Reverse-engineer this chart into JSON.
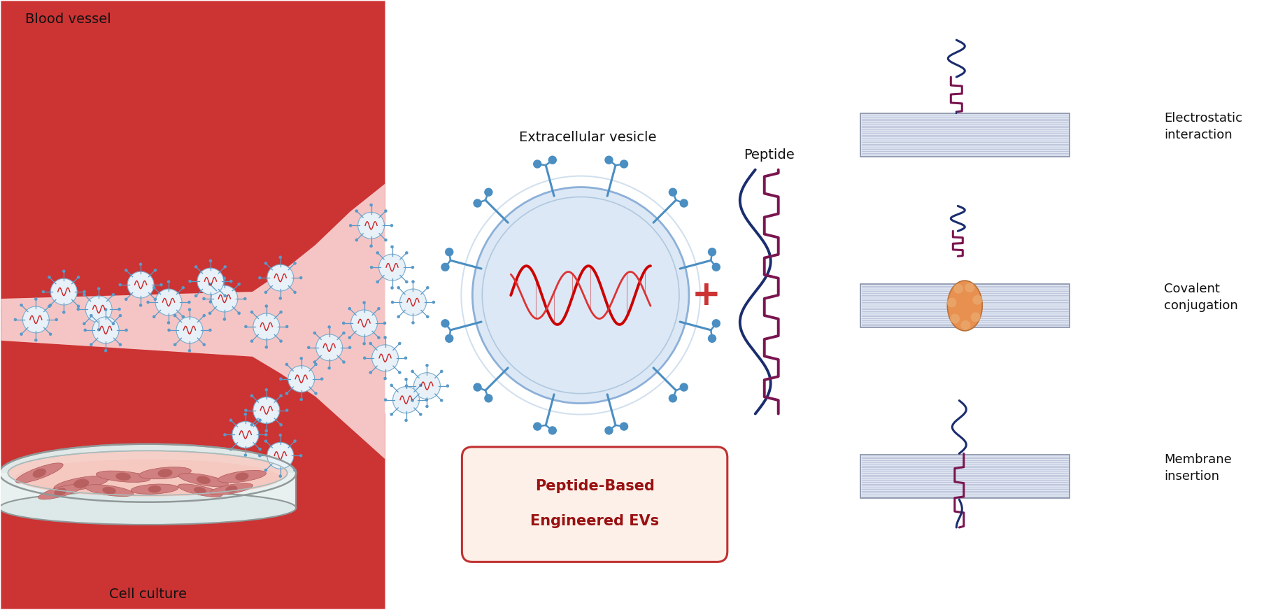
{
  "bg_color": "#ffffff",
  "blood_vessel_outer": "#cc3333",
  "blood_vessel_wall": "#d44444",
  "blood_vessel_inner": "#f5c5c5",
  "ev_body_color": "#dce8f5",
  "ev_border_color": "#8cb0d8",
  "ev_border2_color": "#b0c8e0",
  "ev_spike_color": "#4a8ec2",
  "dna_color": "#cc1111",
  "peptide_dark": "#1a2d6e",
  "peptide_zigzag": "#7a1550",
  "membrane_color": "#dde4f0",
  "membrane_border": "#8890a8",
  "membrane_lines": "#b8c0d8",
  "protein_color": "#e89050",
  "cell_body_color": "#e8a8a0",
  "cell_outline_color": "#c06868",
  "cell_nucleus_color": "#c47070",
  "dish_rim_color": "#c8d8d8",
  "dish_inner_color": "#f5d0c8",
  "dish_border_color": "#909898",
  "mini_ev_body": "#e8f0f8",
  "mini_ev_border": "#7aaccc",
  "mini_ev_spike": "#5a9ac8",
  "mini_ev_dna": "#cc2222",
  "label_blood": "Blood vessel",
  "label_ev": "Extracellular vesicle",
  "label_peptide": "Peptide",
  "label_cell": "Cell culture",
  "label_box1": "Peptide-Based",
  "label_box2": "Engineered EVs",
  "label_es": "Electrostatic\ninteraction",
  "label_cc": "Covalent\nconjugation",
  "label_mi": "Membrane\ninsertion",
  "plus_color": "#cc3333",
  "text_color": "#111111",
  "box_bg": "#fdf0e8",
  "box_border": "#c03030",
  "box_text_color": "#991111"
}
